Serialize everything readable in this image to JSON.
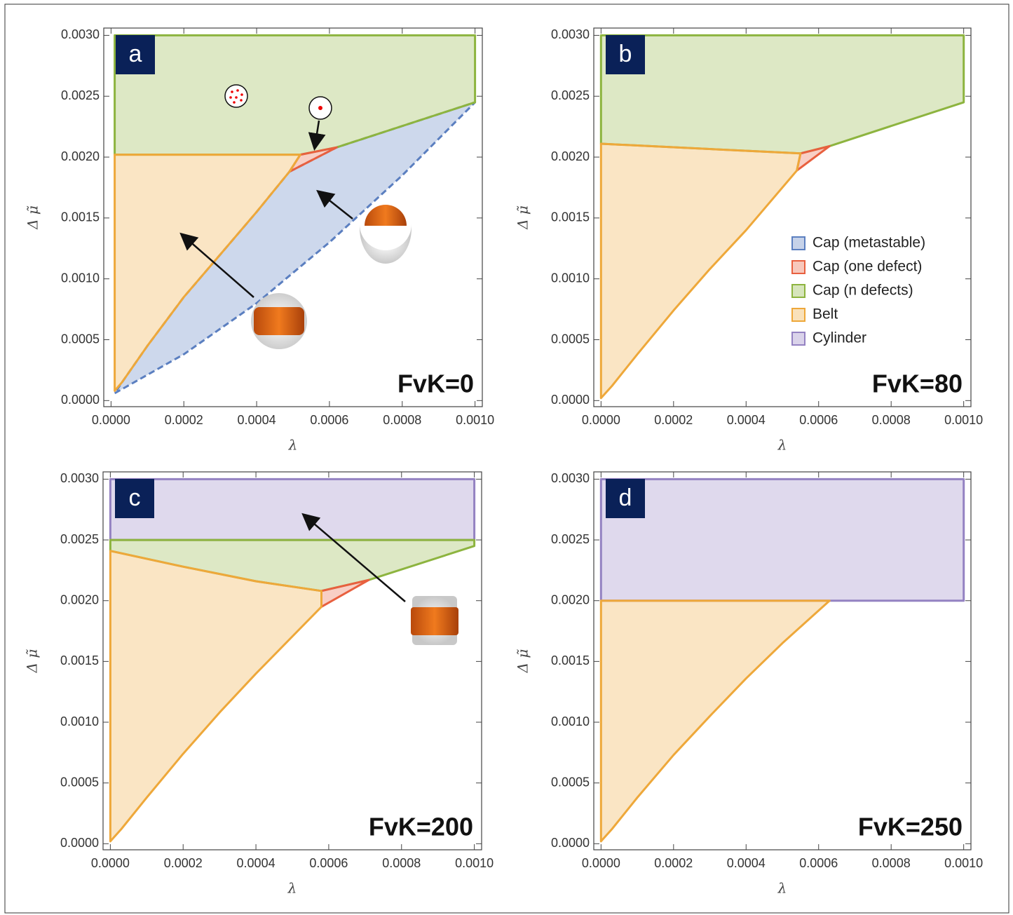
{
  "chart_data": [
    {
      "type": "area",
      "panel": "a",
      "annotation": "FvK=0",
      "xlabel": "λ",
      "ylabel": "Δ μ̃",
      "xlim": [
        -2e-05,
        0.00102
      ],
      "ylim": [
        -5e-05,
        0.00306
      ],
      "xticks": [
        {
          "value": 0,
          "label": "0.0000"
        },
        {
          "value": 0.0002,
          "label": "0.0002"
        },
        {
          "value": 0.0004,
          "label": "0.0004"
        },
        {
          "value": 0.0006,
          "label": "0.0006"
        },
        {
          "value": 0.0008,
          "label": "0.0008"
        },
        {
          "value": 0.001,
          "label": "0.0010"
        }
      ],
      "yticks": [
        {
          "value": 0,
          "label": "0.0000"
        },
        {
          "value": 0.0005,
          "label": "0.0005"
        },
        {
          "value": 0.001,
          "label": "0.0010"
        },
        {
          "value": 0.0015,
          "label": "0.0015"
        },
        {
          "value": 0.002,
          "label": "0.0020"
        },
        {
          "value": 0.0025,
          "label": "0.0025"
        },
        {
          "value": 0.003,
          "label": "0.0030"
        }
      ],
      "series": [
        {
          "color": "#5b7fc0",
          "line_style": "dashed",
          "x": [
            0.00049,
            0.00062,
            0.001,
            0.0008,
            0.0006,
            0.0004,
            0.0002,
            1e-05,
            3e-05,
            0.0001,
            0.0002,
            0.0003,
            0.0004
          ],
          "values": [
            0.00188,
            0.00208,
            0.00245,
            0.00185,
            0.0013,
            0.0008,
            0.00038,
            6e-05,
            0.00015,
            0.00045,
            0.00085,
            0.0012,
            0.00155
          ]
        },
        {
          "color": "#8db43f",
          "x": [
            1e-05,
            0.001,
            0.001,
            0.00062,
            0.00052,
            1e-05
          ],
          "values": [
            0.003,
            0.003,
            0.00245,
            0.00208,
            0.00202,
            0.00202
          ]
        },
        {
          "color": "#e8603f",
          "x": [
            0.00052,
            0.00062,
            0.00049
          ],
          "values": [
            0.00202,
            0.00208,
            0.00188
          ]
        },
        {
          "color": "#eea83a",
          "x": [
            1e-05,
            0.00052,
            0.00049,
            0.0004,
            0.0003,
            0.0002,
            0.0001,
            3e-05,
            1e-05
          ],
          "values": [
            0.00202,
            0.00202,
            0.00188,
            0.00155,
            0.0012,
            0.00085,
            0.00045,
            0.00015,
            8e-05
          ]
        }
      ]
    },
    {
      "type": "area",
      "panel": "b",
      "annotation": "FvK=80",
      "xlabel": "λ",
      "ylabel": "Δ μ̃",
      "xlim": [
        -2e-05,
        0.00102
      ],
      "ylim": [
        -5e-05,
        0.00306
      ],
      "xticks": [
        {
          "value": 0,
          "label": "0.0000"
        },
        {
          "value": 0.0002,
          "label": "0.0002"
        },
        {
          "value": 0.0004,
          "label": "0.0004"
        },
        {
          "value": 0.0006,
          "label": "0.0006"
        },
        {
          "value": 0.0008,
          "label": "0.0008"
        },
        {
          "value": 0.001,
          "label": "0.0010"
        }
      ],
      "yticks": [
        {
          "value": 0,
          "label": "0.0000"
        },
        {
          "value": 0.0005,
          "label": "0.0005"
        },
        {
          "value": 0.001,
          "label": "0.0010"
        },
        {
          "value": 0.0015,
          "label": "0.0015"
        },
        {
          "value": 0.002,
          "label": "0.0020"
        },
        {
          "value": 0.0025,
          "label": "0.0025"
        },
        {
          "value": 0.003,
          "label": "0.0030"
        }
      ],
      "legend": [
        {
          "name": "Cap (metastable)",
          "color": "#5b7fc0"
        },
        {
          "name": "Cap (one defect)",
          "color": "#e8603f"
        },
        {
          "name": "Cap (n defects)",
          "color": "#8db43f"
        },
        {
          "name": "Belt",
          "color": "#eea83a"
        },
        {
          "name": "Cylinder",
          "color": "#9482c2"
        }
      ],
      "series": [
        {
          "color": "#8db43f",
          "x": [
            0,
            0.001,
            0.001,
            0.00063,
            0.00055,
            0
          ],
          "values": [
            0.003,
            0.003,
            0.00245,
            0.00209,
            0.00203,
            0.00211
          ]
        },
        {
          "color": "#e8603f",
          "x": [
            0.00055,
            0.00063,
            0.00054
          ],
          "values": [
            0.00203,
            0.00209,
            0.00189
          ]
        },
        {
          "color": "#eea83a",
          "x": [
            0,
            0.00055,
            0.00054,
            0.0004,
            0.0003,
            0.0002,
            0.0001,
            3e-05,
            0
          ],
          "values": [
            0.00211,
            0.00203,
            0.00189,
            0.0014,
            0.00108,
            0.00074,
            0.00038,
            0.00012,
            2e-05
          ]
        }
      ]
    },
    {
      "type": "area",
      "panel": "c",
      "annotation": "FvK=200",
      "xlabel": "λ",
      "ylabel": "Δ μ̃",
      "xlim": [
        -2e-05,
        0.00102
      ],
      "ylim": [
        -5e-05,
        0.00306
      ],
      "xticks": [
        {
          "value": 0,
          "label": "0.0000"
        },
        {
          "value": 0.0002,
          "label": "0.0002"
        },
        {
          "value": 0.0004,
          "label": "0.0004"
        },
        {
          "value": 0.0006,
          "label": "0.0006"
        },
        {
          "value": 0.0008,
          "label": "0.0008"
        },
        {
          "value": 0.001,
          "label": "0.0010"
        }
      ],
      "yticks": [
        {
          "value": 0,
          "label": "0.0000"
        },
        {
          "value": 0.0005,
          "label": "0.0005"
        },
        {
          "value": 0.001,
          "label": "0.0010"
        },
        {
          "value": 0.0015,
          "label": "0.0015"
        },
        {
          "value": 0.002,
          "label": "0.0020"
        },
        {
          "value": 0.0025,
          "label": "0.0025"
        },
        {
          "value": 0.003,
          "label": "0.0030"
        }
      ],
      "series": [
        {
          "color": "#9482c2",
          "x": [
            0,
            0.001,
            0.001,
            0
          ],
          "values": [
            0.0025,
            0.0025,
            0.003,
            0.003
          ]
        },
        {
          "color": "#8db43f",
          "x": [
            0,
            0.001,
            0.001,
            0.00071,
            0.00058,
            0.0004,
            0.0002,
            0
          ],
          "values": [
            0.0025,
            0.0025,
            0.00245,
            0.00217,
            0.00208,
            0.00216,
            0.00228,
            0.00241
          ]
        },
        {
          "color": "#e8603f",
          "x": [
            0.00058,
            0.00071,
            0.00058
          ],
          "values": [
            0.00208,
            0.00217,
            0.00195
          ]
        },
        {
          "color": "#eea83a",
          "x": [
            0,
            0.0002,
            0.0004,
            0.00058,
            0.00058,
            0.0004,
            0.0003,
            0.0002,
            0.0001,
            3e-05,
            0
          ],
          "values": [
            0.00241,
            0.00228,
            0.00216,
            0.00208,
            0.00195,
            0.0014,
            0.00108,
            0.00074,
            0.00038,
            0.00012,
            2e-05
          ]
        }
      ]
    },
    {
      "type": "area",
      "panel": "d",
      "annotation": "FvK=250",
      "xlabel": "λ",
      "ylabel": "Δ μ̃",
      "xlim": [
        -2e-05,
        0.00102
      ],
      "ylim": [
        -5e-05,
        0.00306
      ],
      "xticks": [
        {
          "value": 0,
          "label": "0.0000"
        },
        {
          "value": 0.0002,
          "label": "0.0002"
        },
        {
          "value": 0.0004,
          "label": "0.0004"
        },
        {
          "value": 0.0006,
          "label": "0.0006"
        },
        {
          "value": 0.0008,
          "label": "0.0008"
        },
        {
          "value": 0.001,
          "label": "0.0010"
        }
      ],
      "yticks": [
        {
          "value": 0,
          "label": "0.0000"
        },
        {
          "value": 0.0005,
          "label": "0.0005"
        },
        {
          "value": 0.001,
          "label": "0.0010"
        },
        {
          "value": 0.0015,
          "label": "0.0015"
        },
        {
          "value": 0.002,
          "label": "0.0020"
        },
        {
          "value": 0.0025,
          "label": "0.0025"
        },
        {
          "value": 0.003,
          "label": "0.0030"
        }
      ],
      "series": [
        {
          "color": "#9482c2",
          "x": [
            0,
            0.001,
            0.001,
            0
          ],
          "values": [
            0.002,
            0.002,
            0.003,
            0.003
          ]
        },
        {
          "color": "#eea83a",
          "x": [
            0,
            0.00063,
            0.0005,
            0.0004,
            0.0003,
            0.0002,
            0.0001,
            3e-05,
            0
          ],
          "values": [
            0.002,
            0.002,
            0.00165,
            0.00136,
            0.00105,
            0.00073,
            0.00038,
            0.00012,
            2e-05
          ]
        }
      ]
    }
  ]
}
